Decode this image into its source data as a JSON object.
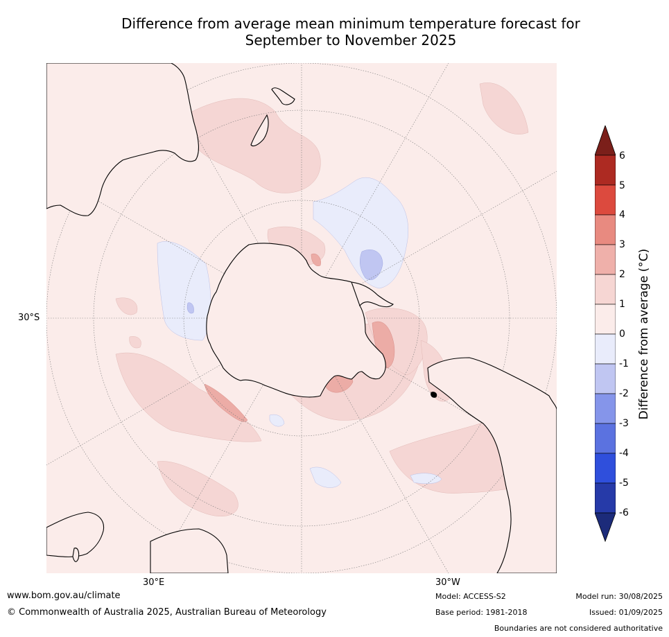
{
  "title": {
    "line1": "Difference from average mean minimum temperature forecast for",
    "line2": "September to November 2025"
  },
  "map": {
    "projection": "south-polar-stereographic",
    "lat_labels": [
      "30°S"
    ],
    "lon_labels": [
      "30°E",
      "30°W"
    ],
    "colors": {
      "land_outline": "#000000",
      "graticule": "#7a7a7a",
      "bg_0_1": "#fbecea",
      "c_1_2": "#f5d6d4",
      "c_2_3": "#ecaca6",
      "c_neg1_0": "#e9ecfb",
      "c_neg2_neg1": "#c0c6f2"
    }
  },
  "colorbar": {
    "label": "Difference from average (°C)",
    "ticks": [
      "6",
      "5",
      "4",
      "3",
      "2",
      "1",
      "0",
      "-1",
      "-2",
      "-3",
      "-4",
      "-5",
      "-6"
    ],
    "over_color": "#7b1f1a",
    "under_color": "#1c2b7a",
    "bins": [
      {
        "range": "5 to 6",
        "color": "#ad2a22"
      },
      {
        "range": "4 to 5",
        "color": "#dc4a3e"
      },
      {
        "range": "3 to 4",
        "color": "#e88a80"
      },
      {
        "range": "2 to 3",
        "color": "#efb0aa"
      },
      {
        "range": "1 to 2",
        "color": "#f6d6d3"
      },
      {
        "range": "0 to 1",
        "color": "#fbecea"
      },
      {
        "range": "-1 to 0",
        "color": "#e9ecfb"
      },
      {
        "range": "-2 to -1",
        "color": "#c0c6f2"
      },
      {
        "range": "-3 to -2",
        "color": "#8595ea"
      },
      {
        "range": "-4 to -3",
        "color": "#5b72e0"
      },
      {
        "range": "-5 to -4",
        "color": "#2f4fdc"
      },
      {
        "range": "-6 to -5",
        "color": "#263aa8"
      }
    ]
  },
  "footer": {
    "website": "www.bom.gov.au/climate",
    "copyright": "© Commonwealth of Australia 2025, Australian Bureau of Meteorology",
    "model": "Model: ACCESS-S2",
    "base_period": "Base period: 1981-2018",
    "model_run": "Model run: 30/08/2025",
    "issued": "Issued: 01/09/2025",
    "disclaimer": "Boundaries are not considered authoritative"
  }
}
